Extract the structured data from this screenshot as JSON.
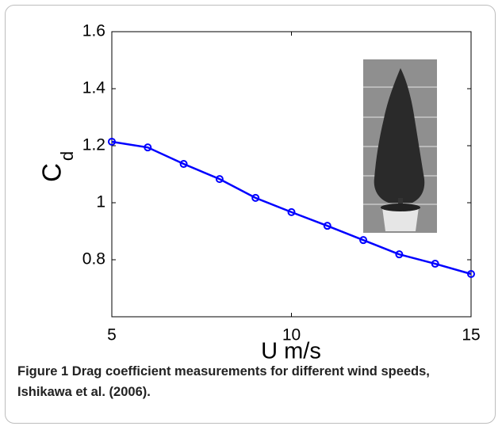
{
  "chart_data": {
    "type": "line",
    "x_label": "U m/s",
    "y_label": "C",
    "y_label_subscript": "d",
    "x": [
      5,
      6,
      7,
      8,
      9,
      10,
      11,
      12,
      13,
      14,
      15
    ],
    "series": [
      {
        "name": "Cd",
        "color": "#0000ff",
        "values": [
          1.214,
          1.194,
          1.136,
          1.083,
          1.017,
          0.967,
          0.919,
          0.869,
          0.819,
          0.786,
          0.75
        ]
      }
    ],
    "xlim": [
      5,
      15
    ],
    "xticks": [
      5,
      10,
      15
    ],
    "ylim": [
      0.6,
      1.6
    ],
    "yticks": [
      0.8,
      1,
      1.2,
      1.4,
      1.6
    ],
    "grid": false,
    "legend": false
  },
  "caption": {
    "label": "Figure 1",
    "text": "Drag coefficient measurements for different wind speeds, Ishikawa et al. (2006)."
  }
}
